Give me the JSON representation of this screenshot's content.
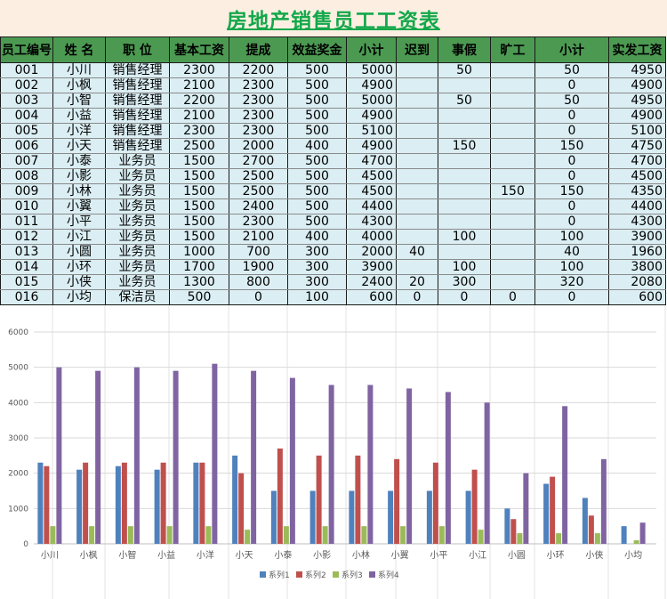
{
  "title": "房地产销售员工工资表",
  "table": {
    "headers": [
      "员工编号",
      "姓 名",
      "职 位",
      "基本工资",
      "提成",
      "效益奖金",
      "小计",
      "迟到",
      "事假",
      "旷工",
      "小计",
      "实发工资"
    ],
    "rows": [
      [
        "001",
        "小川",
        "销售经理",
        "2300",
        "2200",
        "500",
        "5000",
        "",
        "50",
        "",
        "50",
        "4950"
      ],
      [
        "002",
        "小枫",
        "销售经理",
        "2100",
        "2300",
        "500",
        "4900",
        "",
        "",
        "",
        "0",
        "4900"
      ],
      [
        "003",
        "小智",
        "销售经理",
        "2200",
        "2300",
        "500",
        "5000",
        "",
        "50",
        "",
        "50",
        "4950"
      ],
      [
        "004",
        "小益",
        "销售经理",
        "2100",
        "2300",
        "500",
        "4900",
        "",
        "",
        "",
        "0",
        "4900"
      ],
      [
        "005",
        "小洋",
        "销售经理",
        "2300",
        "2300",
        "500",
        "5100",
        "",
        "",
        "",
        "0",
        "5100"
      ],
      [
        "006",
        "小天",
        "销售经理",
        "2500",
        "2000",
        "400",
        "4900",
        "",
        "150",
        "",
        "150",
        "4750"
      ],
      [
        "007",
        "小泰",
        "业务员",
        "1500",
        "2700",
        "500",
        "4700",
        "",
        "",
        "",
        "0",
        "4700"
      ],
      [
        "008",
        "小影",
        "业务员",
        "1500",
        "2500",
        "500",
        "4500",
        "",
        "",
        "",
        "0",
        "4500"
      ],
      [
        "009",
        "小林",
        "业务员",
        "1500",
        "2500",
        "500",
        "4500",
        "",
        "",
        "150",
        "150",
        "4350"
      ],
      [
        "010",
        "小翼",
        "业务员",
        "1500",
        "2400",
        "500",
        "4400",
        "",
        "",
        "",
        "0",
        "4400"
      ],
      [
        "011",
        "小平",
        "业务员",
        "1500",
        "2300",
        "500",
        "4300",
        "",
        "",
        "",
        "0",
        "4300"
      ],
      [
        "012",
        "小江",
        "业务员",
        "1500",
        "2100",
        "400",
        "4000",
        "",
        "100",
        "",
        "100",
        "3900"
      ],
      [
        "013",
        "小圆",
        "业务员",
        "1000",
        "700",
        "300",
        "2000",
        "40",
        "",
        "",
        "40",
        "1960"
      ],
      [
        "014",
        "小环",
        "业务员",
        "1700",
        "1900",
        "300",
        "3900",
        "",
        "100",
        "",
        "100",
        "3800"
      ],
      [
        "015",
        "小侠",
        "业务员",
        "1300",
        "800",
        "300",
        "2400",
        "20",
        "300",
        "",
        "320",
        "2080"
      ],
      [
        "016",
        "小均",
        "保洁员",
        "500",
        "0",
        "100",
        "600",
        "0",
        "0",
        "0",
        "0",
        "600"
      ]
    ]
  },
  "chart_data": {
    "type": "bar",
    "categories": [
      "小川",
      "小枫",
      "小智",
      "小益",
      "小洋",
      "小天",
      "小泰",
      "小影",
      "小林",
      "小翼",
      "小平",
      "小江",
      "小圆",
      "小环",
      "小侠",
      "小均"
    ],
    "series": [
      {
        "name": "系列1",
        "color": "#4f81bd",
        "values": [
          2300,
          2100,
          2200,
          2100,
          2300,
          2500,
          1500,
          1500,
          1500,
          1500,
          1500,
          1500,
          1000,
          1700,
          1300,
          500
        ]
      },
      {
        "name": "系列2",
        "color": "#c0504d",
        "values": [
          2200,
          2300,
          2300,
          2300,
          2300,
          2000,
          2700,
          2500,
          2500,
          2400,
          2300,
          2100,
          700,
          1900,
          800,
          0
        ]
      },
      {
        "name": "系列3",
        "color": "#9bbb59",
        "values": [
          500,
          500,
          500,
          500,
          500,
          400,
          500,
          500,
          500,
          500,
          500,
          400,
          300,
          300,
          300,
          100
        ]
      },
      {
        "name": "系列4",
        "color": "#8064a2",
        "values": [
          5000,
          4900,
          5000,
          4900,
          5100,
          4900,
          4700,
          4500,
          4500,
          4400,
          4300,
          4000,
          2000,
          3900,
          2400,
          600
        ]
      }
    ],
    "yticks": [
      "0",
      "1000",
      "2000",
      "3000",
      "4000",
      "5000",
      "6000"
    ],
    "ylim": [
      0,
      6000
    ],
    "legend_position": "bottom",
    "grid": true
  }
}
